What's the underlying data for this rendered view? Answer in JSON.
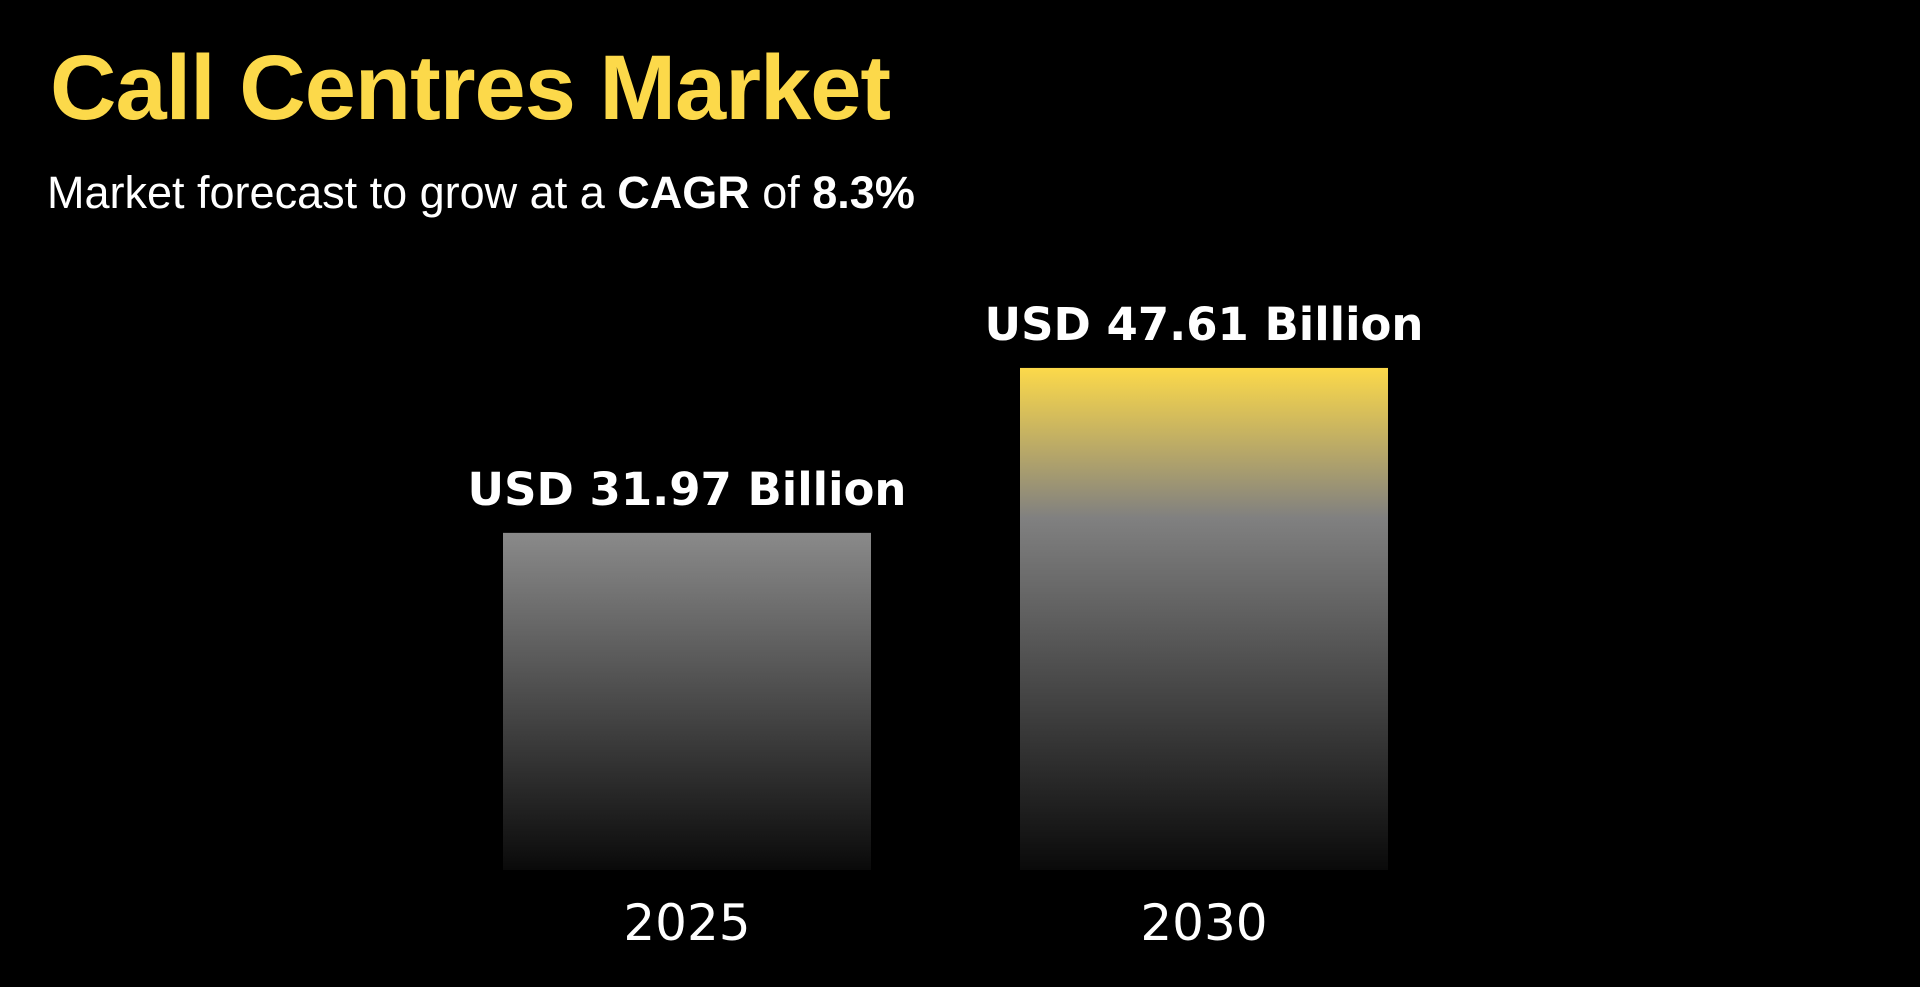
{
  "colors": {
    "background": "#000000",
    "title": "#fcd94a",
    "text": "#ffffff",
    "bar_gray_top": "#8a8a8a",
    "bar_bottom": "#0a0a0a",
    "bar_highlight": "#fcd94a"
  },
  "header": {
    "title": "Call Centres Market",
    "subtitle_prefix": "Market forecast to grow at a ",
    "subtitle_emph1": "CAGR",
    "subtitle_mid": " of ",
    "subtitle_emph2": "8.3%"
  },
  "chart_data": {
    "type": "bar",
    "categories": [
      "2025",
      "2030"
    ],
    "values": [
      31.97,
      47.61
    ],
    "data_labels": [
      "USD 31.97 Billion",
      "USD 47.61 Billion"
    ],
    "title": "",
    "xlabel": "",
    "ylabel": "",
    "ylim": [
      0,
      55
    ],
    "grid": false,
    "legend": "none",
    "highlight_index": 1
  }
}
